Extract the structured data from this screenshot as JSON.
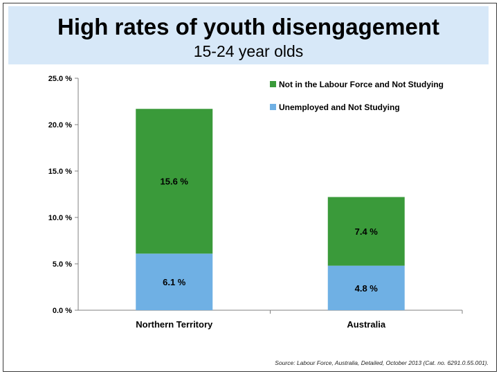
{
  "header": {
    "title": "High rates of youth disengagement",
    "subtitle": "15-24 year olds"
  },
  "source": "Source: Labour Force, Australia, Detailed, October 2013 (Cat. no. 6291.0.55.001).",
  "chart_data": {
    "type": "bar",
    "stacked": true,
    "categories": [
      "Northern Territory",
      "Australia"
    ],
    "series": [
      {
        "name": "Unemployed and Not Studying",
        "values": [
          6.1,
          4.8
        ],
        "labels": [
          "6.1 %",
          "4.8 %"
        ],
        "color": "#6fb0e4"
      },
      {
        "name": "Not in the Labour Force and Not Studying",
        "values": [
          15.6,
          7.4
        ],
        "labels": [
          "15.6 %",
          "7.4 %"
        ],
        "color": "#3a9a3a"
      }
    ],
    "ylim": [
      0,
      25
    ],
    "yticks": [
      "0.0 %",
      "5.0 %",
      "10.0 %",
      "15.0 %",
      "20.0 %",
      "25.0 %"
    ],
    "ytick_values": [
      0,
      5,
      10,
      15,
      20,
      25
    ],
    "legend": [
      "Not in the Labour Force and Not Studying",
      "Unemployed and Not Studying"
    ],
    "legend_position": "top-right",
    "grid": false
  }
}
